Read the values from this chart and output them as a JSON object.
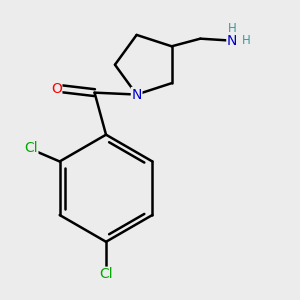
{
  "background_color": "#ececec",
  "bond_color": "#000000",
  "bond_width": 1.8,
  "atom_colors": {
    "O": "#ff0000",
    "N": "#0000cc",
    "Cl": "#00aa00",
    "H": "#3a9a9a",
    "C": "#000000"
  },
  "font_size_atom": 10,
  "font_size_h": 8.5
}
